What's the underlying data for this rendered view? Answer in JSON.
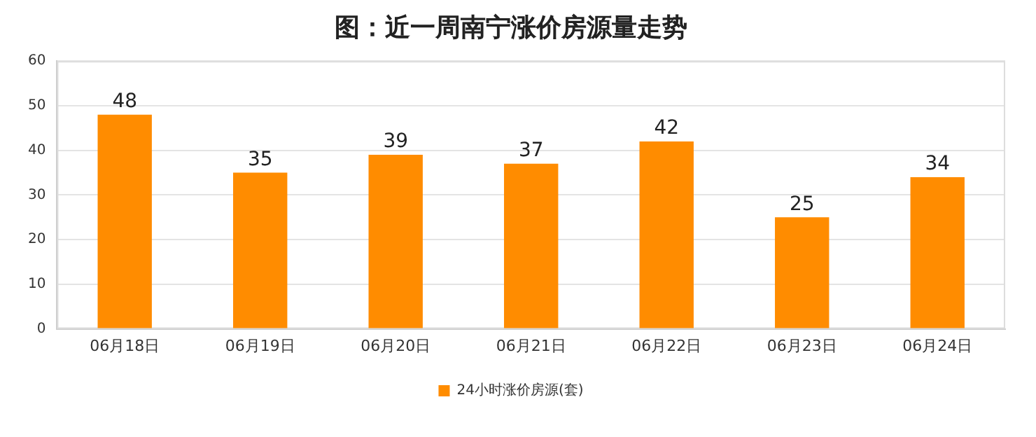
{
  "chart_data": {
    "type": "bar",
    "title": "图：近一周南宁涨价房源量走势",
    "categories": [
      "06月18日",
      "06月19日",
      "06月20日",
      "06月21日",
      "06月22日",
      "06月23日",
      "06月24日"
    ],
    "series": [
      {
        "name": "24小时涨价房源(套)",
        "color": "#ff8c00",
        "values": [
          48,
          35,
          39,
          37,
          42,
          25,
          34
        ]
      }
    ],
    "ylim": [
      0,
      60
    ],
    "yticks": [
      0,
      10,
      20,
      30,
      40,
      50,
      60
    ],
    "grid": "y",
    "legend": "bottom",
    "data_labels": true
  }
}
